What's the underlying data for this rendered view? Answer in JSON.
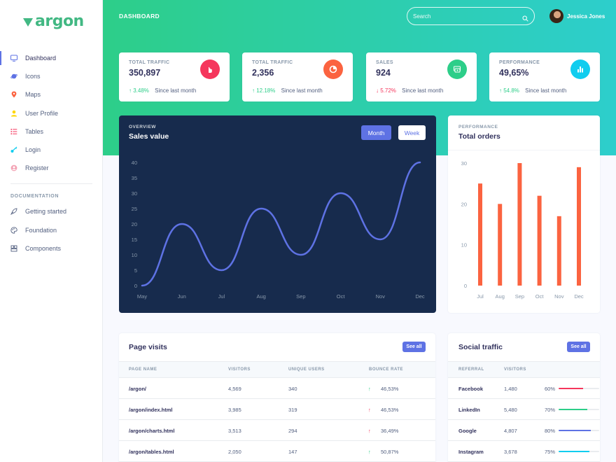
{
  "brand": {
    "logo": "argon",
    "page_title": "DASHBOARD"
  },
  "search": {
    "placeholder": "Search"
  },
  "user": {
    "name": "Jessica Jones"
  },
  "sidebar": {
    "items": [
      {
        "label": "Dashboard",
        "icon": "tv-icon",
        "color": "#5e72e4"
      },
      {
        "label": "Icons",
        "icon": "planet-icon",
        "color": "#5e72e4"
      },
      {
        "label": "Maps",
        "icon": "pin-icon",
        "color": "#fb6340"
      },
      {
        "label": "User Profile",
        "icon": "user-icon",
        "color": "#ffd600"
      },
      {
        "label": "Tables",
        "icon": "list-icon",
        "color": "#f5365c"
      },
      {
        "label": "Login",
        "icon": "key-icon",
        "color": "#11cdef"
      },
      {
        "label": "Register",
        "icon": "circle-user-icon",
        "color": "#f3a4b5"
      }
    ],
    "docs_heading": "DOCUMENTATION",
    "docs": [
      {
        "label": "Getting started",
        "icon": "spaceship-icon"
      },
      {
        "label": "Foundation",
        "icon": "palette-icon"
      },
      {
        "label": "Components",
        "icon": "ui-icon"
      }
    ]
  },
  "stats": [
    {
      "label": "TOTAL TRAFFIC",
      "value": "350,897",
      "change": "3.48%",
      "direction": "up",
      "since": "Since last month",
      "icon": "pointer-icon",
      "color": "#f5365c"
    },
    {
      "label": "TOTAL TRAFFIC",
      "value": "2,356",
      "change": "12.18%",
      "direction": "up",
      "since": "Since last month",
      "icon": "pie-chart-icon",
      "color": "#fb6340"
    },
    {
      "label": "SALES",
      "value": "924",
      "change": "5.72%",
      "direction": "down",
      "since": "Since last month",
      "icon": "money-icon",
      "color": "#2dce89"
    },
    {
      "label": "PERFORMANCE",
      "value": "49,65%",
      "change": "54.8%",
      "direction": "up",
      "since": "Since last month",
      "icon": "bar-chart-icon",
      "color": "#11cdef"
    }
  ],
  "sales_card": {
    "eyebrow": "OVERVIEW",
    "title": "Sales value",
    "btn_month": "Month",
    "btn_week": "Week"
  },
  "orders_card": {
    "eyebrow": "PERFORMANCE",
    "title": "Total orders"
  },
  "chart_data": [
    {
      "type": "line",
      "title": "Sales value",
      "categories": [
        "May",
        "Jun",
        "Jul",
        "Aug",
        "Sep",
        "Oct",
        "Nov",
        "Dec"
      ],
      "values": [
        0,
        20,
        5,
        25,
        10,
        30,
        15,
        40
      ],
      "yticks": [
        0,
        5,
        10,
        15,
        20,
        25,
        30,
        35,
        40
      ],
      "ylim": [
        0,
        40
      ],
      "color": "#5e72e4",
      "grid": false
    },
    {
      "type": "bar",
      "title": "Total orders",
      "categories": [
        "Jul",
        "Aug",
        "Sep",
        "Oct",
        "Nov",
        "Dec"
      ],
      "values": [
        25,
        20,
        30,
        22,
        17,
        29
      ],
      "yticks": [
        0,
        10,
        20,
        30
      ],
      "ylim": [
        0,
        30
      ],
      "color": "#fb6340",
      "grid": false
    }
  ],
  "page_visits": {
    "title": "Page visits",
    "see_all": "See all",
    "columns": [
      "PAGE NAME",
      "VISITORS",
      "UNIQUE USERS",
      "BOUNCE RATE"
    ],
    "rows": [
      {
        "page": "/argon/",
        "visitors": "4,569",
        "unique": "340",
        "bounce": "46,53%",
        "trend": "up"
      },
      {
        "page": "/argon/index.html",
        "visitors": "3,985",
        "unique": "319",
        "bounce": "46,53%",
        "trend": "down"
      },
      {
        "page": "/argon/charts.html",
        "visitors": "3,513",
        "unique": "294",
        "bounce": "36,49%",
        "trend": "down"
      },
      {
        "page": "/argon/tables.html",
        "visitors": "2,050",
        "unique": "147",
        "bounce": "50,87%",
        "trend": "up"
      }
    ]
  },
  "social_traffic": {
    "title": "Social traffic",
    "see_all": "See all",
    "columns": [
      "REFERRAL",
      "VISITORS"
    ],
    "rows": [
      {
        "referral": "Facebook",
        "visitors": "1,480",
        "percent": "60%",
        "progress": 0.6,
        "color": "#f5365c"
      },
      {
        "referral": "LinkedIn",
        "visitors": "5,480",
        "percent": "70%",
        "progress": 0.7,
        "color": "#2dce89"
      },
      {
        "referral": "Google",
        "visitors": "4,807",
        "percent": "80%",
        "progress": 0.8,
        "color": "#5e72e4"
      },
      {
        "referral": "Instagram",
        "visitors": "3,678",
        "percent": "75%",
        "progress": 0.75,
        "color": "#11cdef"
      }
    ]
  }
}
